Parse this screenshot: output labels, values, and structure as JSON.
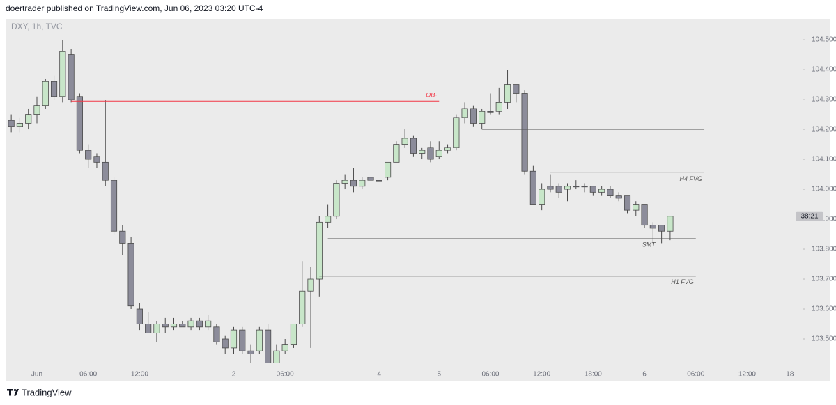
{
  "header": "doertrader published on TradingView.com, Jun 06, 2023 03:20 UTC-4",
  "footer": "TradingView",
  "chart_data": {
    "type": "candlestick",
    "symbol": "DXY, 1h, TVC",
    "categories": [
      null,
      null,
      null,
      "Jun",
      null,
      null,
      null,
      null,
      null,
      "06:00",
      null,
      null,
      null,
      null,
      null,
      "12:00",
      null,
      null,
      null,
      null,
      null,
      null,
      null,
      null,
      null,
      null,
      "2",
      null,
      null,
      null,
      null,
      null,
      "06:00",
      null,
      null,
      null,
      null,
      null,
      null,
      null,
      null,
      null,
      null,
      "4",
      null,
      null,
      null,
      null,
      null,
      null,
      "5",
      null,
      null,
      null,
      null,
      null,
      "06:00",
      null,
      null,
      null,
      null,
      null,
      "12:00",
      null,
      null,
      null,
      null,
      null,
      "18:00",
      null,
      null,
      null,
      null,
      null,
      "6",
      null,
      null,
      null,
      null,
      null,
      "06:00",
      null,
      null,
      null,
      null,
      null,
      "12:00",
      null,
      null,
      null,
      null,
      "18"
    ],
    "open": [
      104.23,
      104.21,
      104.22,
      104.25,
      104.28,
      104.36,
      104.31,
      104.45,
      104.31,
      104.13,
      104.11,
      104.09,
      104.03,
      103.86,
      103.82,
      103.6,
      103.55,
      103.52,
      103.55,
      103.54,
      103.55,
      103.54,
      103.56,
      103.54,
      103.54,
      103.5,
      103.47,
      103.53,
      103.46,
      103.46,
      103.53,
      103.42,
      103.46,
      103.48,
      103.55,
      103.66,
      103.7,
      103.89,
      103.91,
      104.02,
      104.03,
      104.01,
      104.04,
      104.03,
      104.04,
      104.09,
      104.15,
      104.17,
      104.12,
      104.14,
      104.11,
      104.13,
      104.14,
      104.24,
      104.27,
      104.22,
      104.26,
      104.26,
      104.29,
      104.35,
      104.32,
      104.06,
      103.95,
      104.01,
      104.01,
      104.0,
      104.01,
      104.01,
      104.01,
      103.99,
      104.0,
      103.98,
      103.98,
      103.93,
      103.95,
      103.88,
      103.88,
      103.86,
      null,
      null,
      null,
      null,
      null,
      null,
      null,
      null,
      null,
      null,
      null,
      null,
      null,
      null
    ],
    "high": [
      104.25,
      104.24,
      104.27,
      104.31,
      104.37,
      104.38,
      104.5,
      104.47,
      104.32,
      104.15,
      104.12,
      104.3,
      104.04,
      103.88,
      103.84,
      103.62,
      103.59,
      103.56,
      103.57,
      103.57,
      103.56,
      103.57,
      103.57,
      103.58,
      103.55,
      103.51,
      103.54,
      103.54,
      103.48,
      103.54,
      103.55,
      103.48,
      103.5,
      103.55,
      103.76,
      103.74,
      103.91,
      103.95,
      104.03,
      104.05,
      104.07,
      104.04,
      104.04,
      104.03,
      104.09,
      104.16,
      104.2,
      104.18,
      104.14,
      104.16,
      104.16,
      104.15,
      104.25,
      104.29,
      104.28,
      104.27,
      104.32,
      104.34,
      104.4,
      104.35,
      104.33,
      104.08,
      104.02,
      104.05,
      104.02,
      104.02,
      104.03,
      104.02,
      104.01,
      104.01,
      104.01,
      103.99,
      103.98,
      103.96,
      103.95,
      103.89,
      103.88,
      103.91,
      null,
      null,
      null,
      null,
      null,
      null,
      null,
      null,
      null,
      null,
      null,
      null,
      null,
      null
    ],
    "low": [
      104.19,
      104.19,
      104.2,
      104.22,
      104.27,
      104.3,
      104.29,
      104.29,
      104.12,
      104.07,
      104.07,
      104.01,
      103.85,
      103.78,
      103.6,
      103.53,
      103.52,
      103.49,
      103.52,
      103.53,
      103.54,
      103.53,
      103.53,
      103.53,
      103.48,
      103.45,
      103.45,
      103.45,
      103.42,
      103.45,
      103.42,
      103.42,
      103.45,
      103.47,
      103.54,
      103.47,
      103.64,
      103.87,
      103.9,
      104.0,
      103.99,
      104.0,
      104.03,
      104.03,
      104.03,
      104.09,
      104.14,
      104.11,
      104.1,
      104.09,
      104.1,
      104.12,
      104.13,
      104.22,
      104.21,
      104.2,
      104.25,
      104.25,
      104.27,
      104.29,
      104.05,
      103.95,
      103.93,
      103.99,
      103.97,
      103.96,
      104.0,
      103.99,
      103.98,
      103.98,
      103.97,
      103.96,
      103.92,
      103.91,
      103.87,
      103.82,
      103.82,
      103.83,
      null,
      null,
      null,
      null,
      null,
      null,
      null,
      null,
      null,
      null,
      null,
      null,
      null,
      null
    ],
    "close": [
      104.21,
      104.22,
      104.25,
      104.28,
      104.36,
      104.31,
      104.46,
      104.3,
      104.13,
      104.1,
      104.09,
      104.03,
      103.86,
      103.82,
      103.61,
      103.55,
      103.52,
      103.55,
      103.54,
      103.55,
      103.54,
      103.56,
      103.54,
      103.56,
      103.49,
      103.47,
      103.53,
      103.46,
      103.45,
      103.53,
      103.42,
      103.46,
      103.48,
      103.55,
      103.66,
      103.7,
      103.89,
      103.91,
      104.02,
      104.03,
      104.01,
      104.03,
      104.03,
      104.03,
      104.09,
      104.15,
      104.17,
      104.12,
      104.13,
      104.1,
      104.13,
      104.14,
      104.24,
      104.27,
      104.22,
      104.26,
      104.26,
      104.29,
      104.35,
      104.32,
      104.06,
      103.95,
      104.0,
      104.0,
      103.99,
      104.01,
      104.01,
      104.01,
      103.99,
      104.0,
      103.98,
      103.97,
      103.93,
      103.95,
      103.88,
      103.87,
      103.86,
      103.91,
      null,
      null,
      null,
      null,
      null,
      null,
      null,
      null,
      null,
      null,
      null,
      null,
      null,
      null
    ],
    "up_color": "#c8e6c9",
    "down_color": "#8c8c9a",
    "ylim": [
      103.4,
      104.563
    ],
    "yticks": [
      {
        "value": 103.5,
        "label": "103.500"
      },
      {
        "value": 103.6,
        "label": "103.600"
      },
      {
        "value": 103.7,
        "label": "103.700"
      },
      {
        "value": 103.8,
        "label": "103.800"
      },
      {
        "value": 103.9,
        "label": "103.900"
      },
      {
        "value": 104.0,
        "label": "104.000"
      },
      {
        "value": 104.1,
        "label": "104.100"
      },
      {
        "value": 104.2,
        "label": "104.200"
      },
      {
        "value": 104.3,
        "label": "104.300"
      },
      {
        "value": 104.4,
        "label": "104.400"
      },
      {
        "value": 104.5,
        "label": "104.500"
      }
    ],
    "countdown": "38:21",
    "annotations": [
      {
        "text": "OB-",
        "y": 104.295,
        "x": [
          7,
          50
        ],
        "color": "#f23645"
      },
      {
        "y": 104.2,
        "x": [
          55,
          81
        ],
        "color": "#555555"
      },
      {
        "text": "H4 FVG",
        "y": 104.055,
        "x": [
          63,
          81
        ],
        "color": "#555555"
      },
      {
        "text": "SMT",
        "y": 103.835,
        "x": [
          37,
          80
        ],
        "color": "#555555"
      },
      {
        "text": "H1 FVG",
        "y": 103.71,
        "x": [
          36,
          80
        ],
        "color": "#555555"
      }
    ]
  }
}
